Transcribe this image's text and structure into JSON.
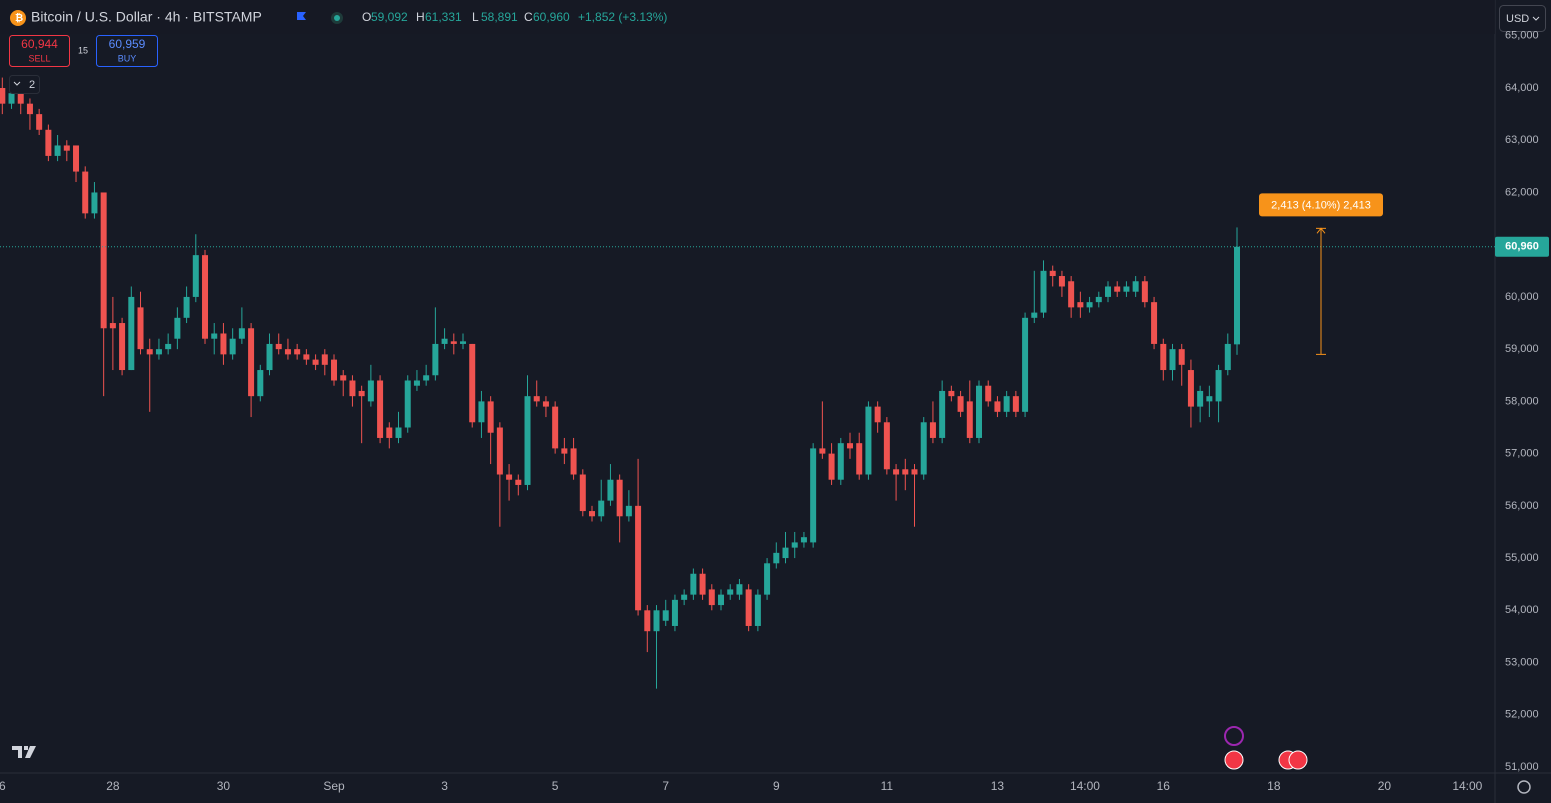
{
  "header": {
    "symbol": "Bitcoin / U.S. Dollar · 4h · BITSTAMP",
    "ohlc": [
      {
        "key": "O",
        "value": "59,092"
      },
      {
        "key": "H",
        "value": "61,331"
      },
      {
        "key": "L",
        "value": "58,891"
      },
      {
        "key": "C",
        "value": "60,960"
      }
    ],
    "change": "+1,852 (+3.13%)"
  },
  "trade": {
    "sell": {
      "price": "60,944",
      "label": "SELL"
    },
    "spread": "15",
    "buy": {
      "price": "60,959",
      "label": "BUY"
    }
  },
  "indicators_count": "2",
  "currency": "USD",
  "chart_data": {
    "type": "candlestick",
    "up_color": "#26a69a",
    "down_color": "#ef5350",
    "x": [
      0,
      4,
      8,
      12,
      16,
      20,
      24,
      28,
      32,
      36,
      40,
      44,
      48,
      52,
      56,
      60,
      64,
      68,
      72,
      76,
      80,
      84,
      88,
      92,
      96,
      100,
      104,
      108,
      112,
      116,
      120,
      124,
      128,
      132,
      136,
      140,
      144,
      148,
      152,
      156,
      160,
      164,
      168,
      172,
      176,
      180,
      184,
      188,
      192,
      196,
      200,
      204,
      208,
      212,
      216,
      220,
      224,
      228,
      232,
      236,
      240,
      244,
      248,
      252,
      256,
      260,
      264,
      268,
      272,
      276,
      280,
      284,
      288,
      292,
      296,
      300,
      304,
      308,
      312,
      316,
      320,
      324,
      328,
      332,
      336,
      340,
      344,
      348,
      352,
      356,
      360,
      364,
      368,
      372,
      376,
      380,
      384,
      388,
      392,
      396,
      400,
      404,
      408,
      412,
      416,
      420,
      424,
      428,
      432,
      436,
      440,
      444,
      448,
      452,
      456,
      460,
      464,
      468,
      472,
      476,
      480,
      484,
      488,
      492,
      496,
      500,
      504,
      508,
      512,
      516,
      520,
      524,
      528,
      532,
      536
    ],
    "open": [
      64000,
      63700,
      63900,
      63700,
      63500,
      63200,
      62700,
      62900,
      62900,
      62400,
      61600,
      62000,
      59500,
      59500,
      58600,
      59800,
      59000,
      58900,
      59000,
      59200,
      59600,
      60000,
      60800,
      59200,
      59300,
      58900,
      59200,
      59400,
      58100,
      58600,
      59100,
      59000,
      59000,
      58900,
      58800,
      58900,
      58800,
      58500,
      58400,
      58200,
      58000,
      58400,
      57500,
      57300,
      57500,
      58300,
      58400,
      58500,
      59100,
      59150,
      59100,
      59100,
      57600,
      58000,
      57500,
      56600,
      56500,
      56400,
      58100,
      58000,
      57900,
      57100,
      57100,
      56600,
      55900,
      55800,
      56100,
      56500,
      55800,
      56000,
      54000,
      53600,
      53800,
      53700,
      54200,
      54300,
      54700,
      54400,
      54100,
      54300,
      54300,
      54400,
      53700,
      54300,
      54900,
      55000,
      55200,
      55300,
      55300,
      57100,
      57000,
      56500,
      57200,
      57200,
      56600,
      57900,
      57600,
      56700,
      56700,
      56700,
      56600,
      57600,
      57300,
      58200,
      58100,
      58000,
      57300,
      58300,
      58000,
      57800,
      58100,
      57800,
      59600,
      59700,
      60500,
      60400,
      60300,
      59900,
      59800,
      59900,
      60000,
      60200,
      60100,
      60100,
      60300,
      59900,
      59100,
      58600,
      59000,
      58600,
      57900,
      58000,
      58000,
      58600,
      59092
    ],
    "high": [
      64200,
      64100,
      64000,
      63800,
      63600,
      63300,
      63100,
      63000,
      62900,
      62500,
      62200,
      62000,
      60000,
      59600,
      60200,
      60100,
      59200,
      59200,
      59300,
      59800,
      60200,
      61200,
      60900,
      59500,
      59500,
      59400,
      59800,
      59500,
      58700,
      59300,
      59300,
      59200,
      59100,
      59000,
      58900,
      59000,
      58900,
      58600,
      58500,
      58300,
      58700,
      58500,
      57600,
      57800,
      58500,
      58600,
      58700,
      59800,
      59400,
      59300,
      59300,
      59100,
      58200,
      58100,
      57600,
      56800,
      56600,
      58500,
      58400,
      58100,
      58000,
      57300,
      57300,
      56700,
      56000,
      56500,
      56800,
      56600,
      56300,
      56900,
      54100,
      54100,
      54200,
      54300,
      54400,
      54800,
      54800,
      54500,
      54400,
      54500,
      54600,
      54500,
      54400,
      55000,
      55300,
      55500,
      55500,
      55500,
      57200,
      58000,
      57200,
      57300,
      57400,
      57400,
      58000,
      58000,
      57700,
      56800,
      56900,
      56800,
      57700,
      58000,
      58400,
      58300,
      58200,
      58400,
      58400,
      58400,
      58100,
      58200,
      58200,
      59700,
      60500,
      60700,
      60600,
      60500,
      60400,
      60100,
      60000,
      60100,
      60300,
      60300,
      60300,
      60400,
      60400,
      60000,
      59200,
      59100,
      59100,
      58800,
      58300,
      58300,
      58700,
      59300,
      61331
    ],
    "low": [
      63500,
      63600,
      63500,
      63200,
      63100,
      62600,
      62600,
      62600,
      62200,
      61500,
      61500,
      58100,
      58600,
      58500,
      58600,
      58900,
      57800,
      58800,
      58900,
      59000,
      59500,
      59900,
      59100,
      58900,
      58700,
      58800,
      59100,
      57700,
      58000,
      58500,
      58900,
      58800,
      58800,
      58700,
      58600,
      58500,
      58300,
      58100,
      57900,
      57200,
      57900,
      57200,
      57100,
      57200,
      57400,
      58200,
      58300,
      58400,
      59000,
      58900,
      59000,
      57500,
      57300,
      56800,
      55600,
      56100,
      56200,
      56300,
      57900,
      57700,
      57000,
      56800,
      56500,
      55800,
      55700,
      55700,
      56000,
      55300,
      55700,
      53900,
      53200,
      52500,
      53700,
      53600,
      54100,
      54200,
      54200,
      54000,
      54000,
      54200,
      54200,
      53600,
      53600,
      54200,
      54800,
      54900,
      55000,
      55200,
      55200,
      56900,
      56400,
      56400,
      56900,
      56500,
      56500,
      57400,
      56600,
      56100,
      56300,
      55600,
      56500,
      57200,
      57200,
      58000,
      57700,
      57200,
      57200,
      57900,
      57700,
      57700,
      57700,
      57700,
      59500,
      59600,
      60200,
      60000,
      59600,
      59600,
      59700,
      59800,
      59900,
      60000,
      60000,
      60000,
      59800,
      59000,
      58400,
      58400,
      58300,
      57500,
      57600,
      57700,
      57600,
      58500,
      58891
    ],
    "close": [
      63700,
      63900,
      63700,
      63500,
      63200,
      62700,
      62900,
      62800,
      62400,
      61600,
      62000,
      59400,
      59400,
      58600,
      60000,
      59000,
      58900,
      59000,
      59100,
      59600,
      60000,
      60800,
      59200,
      59300,
      58900,
      59200,
      59400,
      58100,
      58600,
      59100,
      59000,
      58900,
      58900,
      58800,
      58700,
      58700,
      58400,
      58400,
      58100,
      58100,
      58400,
      57300,
      57300,
      57500,
      58400,
      58400,
      58500,
      59100,
      59200,
      59100,
      59150,
      57600,
      58000,
      57400,
      56600,
      56500,
      56400,
      58100,
      58000,
      57900,
      57100,
      57000,
      56600,
      55900,
      55800,
      56100,
      56500,
      55800,
      56000,
      54000,
      53600,
      54000,
      54000,
      54200,
      54300,
      54700,
      54300,
      54100,
      54300,
      54400,
      54500,
      53700,
      54300,
      54900,
      55100,
      55200,
      55300,
      55400,
      57100,
      57000,
      56500,
      57200,
      57100,
      56600,
      57900,
      57600,
      56700,
      56600,
      56600,
      56600,
      57600,
      57300,
      58200,
      58100,
      57800,
      57300,
      58300,
      58000,
      57800,
      58100,
      57800,
      59600,
      59700,
      60500,
      60400,
      60200,
      59800,
      59800,
      59900,
      60000,
      60200,
      60100,
      60200,
      60300,
      59900,
      59100,
      58600,
      59000,
      58700,
      57900,
      58200,
      58100,
      58600,
      59100,
      60960
    ],
    "xlim": [
      -1,
      648
    ],
    "ylim": [
      50885,
      65685
    ],
    "xticks": [
      {
        "value": 0,
        "label": "6"
      },
      {
        "value": 48,
        "label": "28"
      },
      {
        "value": 96,
        "label": "30"
      },
      {
        "value": 144,
        "label": "Sep"
      },
      {
        "value": 192,
        "label": "3"
      },
      {
        "value": 240,
        "label": "5"
      },
      {
        "value": 288,
        "label": "7"
      },
      {
        "value": 336,
        "label": "9"
      },
      {
        "value": 384,
        "label": "11"
      },
      {
        "value": 432,
        "label": "13"
      },
      {
        "value": 470,
        "label": "14:00"
      },
      {
        "value": 504,
        "label": "16"
      },
      {
        "value": 552,
        "label": "18"
      },
      {
        "value": 600,
        "label": "20"
      },
      {
        "value": 636,
        "label": "14:00"
      }
    ],
    "yticks": [
      {
        "value": 51000,
        "label": "51,000"
      },
      {
        "value": 52000,
        "label": "52,000"
      },
      {
        "value": 53000,
        "label": "53,000"
      },
      {
        "value": 54000,
        "label": "54,000"
      },
      {
        "value": 55000,
        "label": "55,000"
      },
      {
        "value": 56000,
        "label": "56,000"
      },
      {
        "value": 57000,
        "label": "57,000"
      },
      {
        "value": 58000,
        "label": "58,000"
      },
      {
        "value": 59000,
        "label": "59,000"
      },
      {
        "value": 60000,
        "label": "60,000"
      },
      {
        "value": 61000,
        "label": "61,000"
      },
      {
        "value": 62000,
        "label": "62,000"
      },
      {
        "value": 63000,
        "label": "63,000"
      },
      {
        "value": 64000,
        "label": "64,000"
      },
      {
        "value": 65000,
        "label": "65,000"
      }
    ],
    "grid": false,
    "last_price": {
      "value": 60960,
      "label": "60,960",
      "color": "#26a69a"
    },
    "measure": {
      "from": 58900,
      "to": 61313,
      "label": "2,413 (4.10%) 2,413",
      "color": "#f7931a"
    }
  }
}
